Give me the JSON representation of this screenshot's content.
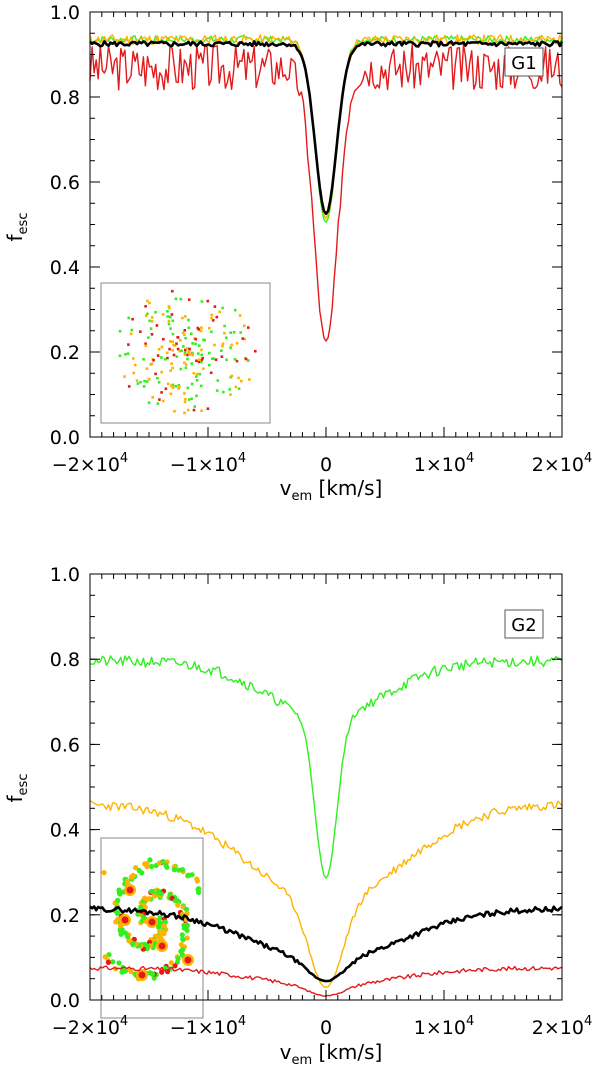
{
  "chart_data": [
    {
      "type": "line",
      "panel_label": "G1",
      "xlabel": "v",
      "xlabel_sub": "em",
      "xlabel_unit": "[km/s]",
      "ylabel": "f",
      "ylabel_sub": "esc",
      "xlim": [
        -20000,
        20000
      ],
      "ylim": [
        0.0,
        1.0
      ],
      "xticks": [
        -20000,
        -10000,
        0,
        10000,
        20000
      ],
      "xtick_labels": [
        {
          "mant": "−2×10",
          "exp": "4"
        },
        {
          "mant": "−1×10",
          "exp": "4"
        },
        {
          "mant": "0",
          "exp": ""
        },
        {
          "mant": "1×10",
          "exp": "4"
        },
        {
          "mant": "2×10",
          "exp": "4"
        }
      ],
      "yticks": [
        0.0,
        0.2,
        0.4,
        0.6,
        0.8,
        1.0
      ],
      "ytick_labels": [
        "0.0",
        "0.2",
        "0.4",
        "0.6",
        "0.8",
        "1.0"
      ],
      "series": [
        {
          "name": "red",
          "color": "#e31a1c",
          "width": 1.4,
          "base": 0.87,
          "noise": 0.055,
          "depth": 0.65,
          "sigma": 1000,
          "wing_depth": 0.0,
          "wing_sigma": 1,
          "seed": 3
        },
        {
          "name": "green",
          "color": "#33ee22",
          "width": 1.4,
          "base": 0.935,
          "noise": 0.009,
          "depth": 0.43,
          "sigma": 900,
          "wing_depth": 0.0,
          "wing_sigma": 1,
          "seed": 7
        },
        {
          "name": "yellow",
          "color": "#ffb300",
          "width": 1.4,
          "base": 0.935,
          "noise": 0.012,
          "depth": 0.42,
          "sigma": 900,
          "wing_depth": 0.0,
          "wing_sigma": 1,
          "seed": 11
        },
        {
          "name": "black",
          "color": "#000000",
          "width": 2.6,
          "base": 0.925,
          "noise": 0.006,
          "depth": 0.4,
          "sigma": 900,
          "wing_depth": 0.0,
          "wing_sigma": 1,
          "seed": 5
        }
      ],
      "inset": {
        "type": "scatter-image",
        "description": "scattered red, green and yellow points"
      }
    },
    {
      "type": "line",
      "panel_label": "G2",
      "xlabel": "v",
      "xlabel_sub": "em",
      "xlabel_unit": "[km/s]",
      "ylabel": "f",
      "ylabel_sub": "esc",
      "xlim": [
        -20000,
        20000
      ],
      "ylim": [
        0.0,
        1.0
      ],
      "xticks": [
        -20000,
        -10000,
        0,
        10000,
        20000
      ],
      "xtick_labels": [
        {
          "mant": "−2×10",
          "exp": "4"
        },
        {
          "mant": "−1×10",
          "exp": "4"
        },
        {
          "mant": "0",
          "exp": ""
        },
        {
          "mant": "1×10",
          "exp": "4"
        },
        {
          "mant": "2×10",
          "exp": "4"
        }
      ],
      "yticks": [
        0.0,
        0.2,
        0.4,
        0.6,
        0.8,
        1.0
      ],
      "ytick_labels": [
        "0.0",
        "0.2",
        "0.4",
        "0.6",
        "0.8",
        "1.0"
      ],
      "series": [
        {
          "name": "green",
          "color": "#33ee22",
          "width": 1.4,
          "base": 0.795,
          "noise": 0.013,
          "depth": 0.38,
          "sigma": 900,
          "wing_depth": 0.13,
          "wing_sigma": 5000,
          "seed": 21
        },
        {
          "name": "yellow",
          "color": "#ffb300",
          "width": 1.4,
          "base": 0.46,
          "noise": 0.011,
          "depth": 0.2,
          "sigma": 1400,
          "wing_depth": 0.23,
          "wing_sigma": 6500,
          "seed": 23
        },
        {
          "name": "black",
          "color": "#000000",
          "width": 2.6,
          "base": 0.215,
          "noise": 0.006,
          "depth": 0.05,
          "sigma": 1500,
          "wing_depth": 0.12,
          "wing_sigma": 6500,
          "seed": 29
        },
        {
          "name": "red",
          "color": "#e31a1c",
          "width": 1.4,
          "base": 0.075,
          "noise": 0.005,
          "depth": 0.025,
          "sigma": 1500,
          "wing_depth": 0.04,
          "wing_sigma": 6000,
          "seed": 31
        }
      ],
      "inset": {
        "type": "spiral-image",
        "description": "spiral galaxy map with red, yellow and green points"
      }
    }
  ]
}
